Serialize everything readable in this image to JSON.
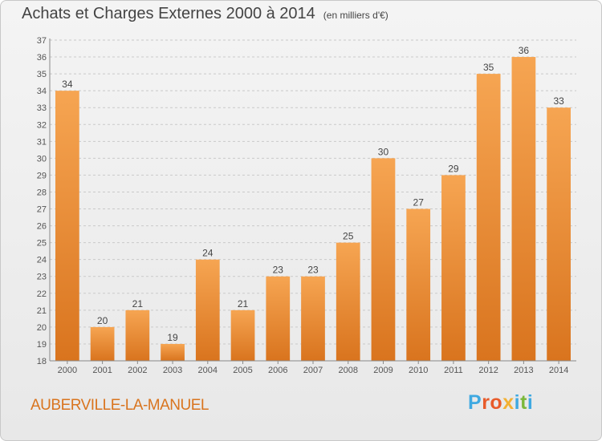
{
  "header": {
    "title": "Achats et Charges Externes 2000 à 2014",
    "unit": "(en milliers d'€)"
  },
  "footer": {
    "place": "AUBERVILLE-LA-MANUEL",
    "logo_text": "Proxiti",
    "logo_colors": [
      "#3fa9e1",
      "#e85b2a",
      "#e85b2a",
      "#f2b134",
      "#3fa9e1",
      "#7bb83a",
      "#3fa9e1"
    ]
  },
  "colors": {
    "bar_light": "#f6a552",
    "bar_dark": "#d9741e",
    "grid": "#c9c9c9",
    "axis_text": "#555555"
  },
  "chart_data": {
    "type": "bar",
    "title": "Achats et Charges Externes 2000 à 2014",
    "subtitle": "(en milliers d'€)",
    "categories": [
      "2000",
      "2001",
      "2002",
      "2003",
      "2004",
      "2005",
      "2006",
      "2007",
      "2008",
      "2009",
      "2010",
      "2011",
      "2012",
      "2013",
      "2014"
    ],
    "values": [
      34,
      20,
      21,
      19,
      24,
      21,
      23,
      23,
      25,
      30,
      27,
      29,
      35,
      36,
      33
    ],
    "ylim": [
      18,
      37
    ],
    "yticks": [
      18,
      19,
      20,
      21,
      22,
      23,
      24,
      25,
      26,
      27,
      28,
      29,
      30,
      31,
      32,
      33,
      34,
      35,
      36,
      37
    ],
    "grid": true,
    "xlabel": "",
    "ylabel": ""
  }
}
